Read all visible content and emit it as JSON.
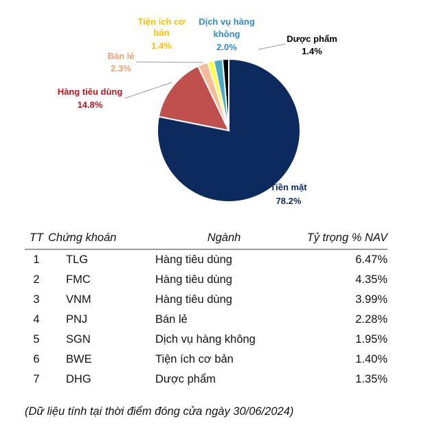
{
  "chart_data": {
    "type": "pie",
    "slices": [
      {
        "label": "Tiền mặt",
        "value": 78.2,
        "display": "78.2%",
        "color": "#0d2a5e",
        "label_color": "#0d2a5e"
      },
      {
        "label": "Hàng tiêu dùng",
        "value": 14.8,
        "display": "14.8%",
        "color": "#c0504d",
        "label_color": "#c0141c"
      },
      {
        "label": "Bán lẻ",
        "value": 2.3,
        "display": "2.3%",
        "color": "#f4bc9a",
        "label_color": "#f0a070"
      },
      {
        "label": "Tiện ích cơ bản",
        "value": 1.4,
        "display": "1.4%",
        "color": "#ffff3a",
        "label_color": "#ffc000"
      },
      {
        "label": "Dịch vụ hàng không",
        "value": 2.0,
        "display": "2.0%",
        "color": "#4bacc6",
        "label_color": "#2e8ccf"
      },
      {
        "label": "Dược phẩm",
        "value": 1.4,
        "display": "1.4%",
        "color": "#000000",
        "label_color": "#000000"
      }
    ]
  },
  "table": {
    "headers": [
      "TT",
      "Chứng khoán",
      "Ngành",
      "Tỷ trọng % NAV"
    ],
    "rows": [
      [
        "1",
        "TLG",
        "Hàng tiêu dùng",
        "6.47%"
      ],
      [
        "2",
        "FMC",
        "Hàng tiêu dùng",
        "4.35%"
      ],
      [
        "3",
        "VNM",
        "Hàng tiêu dùng",
        "3.99%"
      ],
      [
        "4",
        "PNJ",
        "Bán lẻ",
        "2.28%"
      ],
      [
        "5",
        "SGN",
        "Dịch vụ hàng không",
        "1.95%"
      ],
      [
        "6",
        "BWE",
        "Tiện ích cơ bản",
        "1.40%"
      ],
      [
        "7",
        "DHG",
        "Dược phẩm",
        "1.35%"
      ]
    ]
  },
  "footnote": "(Dữ liệu tính tại thời điểm đóng cửa ngày 30/06/2024)"
}
